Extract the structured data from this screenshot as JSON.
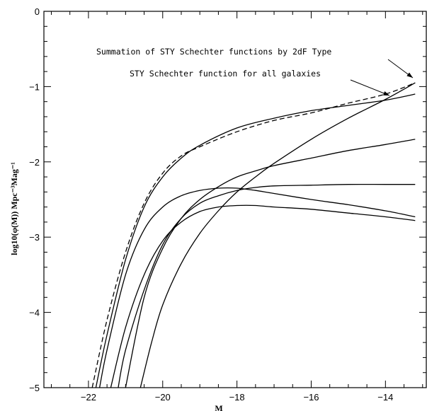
{
  "chart_data": {
    "type": "line",
    "xlabel": "M",
    "ylabel": "log10(φ(M)) Mpc⁻³Mag⁻¹",
    "xlim": [
      -23.2,
      -12.9
    ],
    "ylim": [
      -5,
      0
    ],
    "x_ticks": [
      -22,
      -20,
      -18,
      -16,
      -14
    ],
    "y_ticks": [
      0,
      -1,
      -2,
      -3,
      -4,
      -5
    ],
    "grid": false,
    "annotations": [
      {
        "text": "Summation of STY Schechter functions by 2dF Type",
        "points_to_series": "summation"
      },
      {
        "text": "STY Schechter function for all galaxies",
        "points_to_series": "all"
      }
    ],
    "series": [
      {
        "id": "summation",
        "style": "dashed",
        "x": [
          -21.9,
          -21.5,
          -21,
          -20.5,
          -20,
          -19.5,
          -19,
          -18,
          -17,
          -16,
          -15,
          -14,
          -13.2
        ],
        "y": [
          -5.0,
          -4.1,
          -3.2,
          -2.55,
          -2.15,
          -1.92,
          -1.8,
          -1.6,
          -1.45,
          -1.35,
          -1.22,
          -1.1,
          -0.95
        ]
      },
      {
        "id": "all",
        "style": "solid",
        "x": [
          -21.8,
          -21.5,
          -21,
          -20.5,
          -20,
          -19.5,
          -19,
          -18,
          -17,
          -16,
          -15,
          -14,
          -13.2
        ],
        "y": [
          -5.0,
          -4.3,
          -3.3,
          -2.6,
          -2.2,
          -1.95,
          -1.78,
          -1.55,
          -1.42,
          -1.32,
          -1.25,
          -1.18,
          -1.1
        ]
      },
      {
        "id": "type1",
        "style": "solid",
        "x": [
          -21.7,
          -21.5,
          -21,
          -20.5,
          -20,
          -19.5,
          -19,
          -18.5,
          -18,
          -17.5,
          -17,
          -16,
          -15,
          -14,
          -13.2
        ],
        "y": [
          -5.0,
          -4.5,
          -3.5,
          -2.9,
          -2.6,
          -2.45,
          -2.38,
          -2.35,
          -2.35,
          -2.38,
          -2.42,
          -2.5,
          -2.57,
          -2.65,
          -2.73
        ]
      },
      {
        "id": "type2",
        "style": "solid",
        "x": [
          -21.4,
          -21,
          -20.5,
          -20,
          -19.5,
          -19,
          -18.5,
          -18,
          -17.5,
          -17,
          -16,
          -15,
          -14,
          -13.2
        ],
        "y": [
          -5.0,
          -4.2,
          -3.5,
          -3.05,
          -2.8,
          -2.66,
          -2.6,
          -2.58,
          -2.58,
          -2.6,
          -2.63,
          -2.68,
          -2.73,
          -2.78
        ]
      },
      {
        "id": "type3",
        "style": "solid",
        "x": [
          -21.2,
          -21,
          -20.5,
          -20,
          -19.5,
          -19,
          -18.5,
          -18,
          -17.5,
          -17,
          -16,
          -15,
          -14,
          -13.2
        ],
        "y": [
          -5.0,
          -4.5,
          -3.7,
          -3.1,
          -2.75,
          -2.55,
          -2.45,
          -2.38,
          -2.34,
          -2.32,
          -2.31,
          -2.3,
          -2.3,
          -2.3
        ]
      },
      {
        "id": "type4",
        "style": "solid",
        "x": [
          -21.0,
          -20.5,
          -20,
          -19.5,
          -19,
          -18.5,
          -18,
          -17.5,
          -17,
          -16,
          -15,
          -14,
          -13.2
        ],
        "y": [
          -5.0,
          -3.8,
          -3.15,
          -2.75,
          -2.5,
          -2.33,
          -2.2,
          -2.12,
          -2.05,
          -1.95,
          -1.85,
          -1.77,
          -1.7
        ]
      },
      {
        "id": "type5",
        "style": "solid",
        "x": [
          -20.6,
          -20.3,
          -20,
          -19.5,
          -19,
          -18.5,
          -18,
          -17.5,
          -17,
          -16,
          -15,
          -14,
          -13.2
        ],
        "y": [
          -5.0,
          -4.4,
          -3.9,
          -3.35,
          -2.95,
          -2.65,
          -2.4,
          -2.2,
          -2.02,
          -1.7,
          -1.42,
          -1.17,
          -0.95
        ]
      }
    ]
  }
}
